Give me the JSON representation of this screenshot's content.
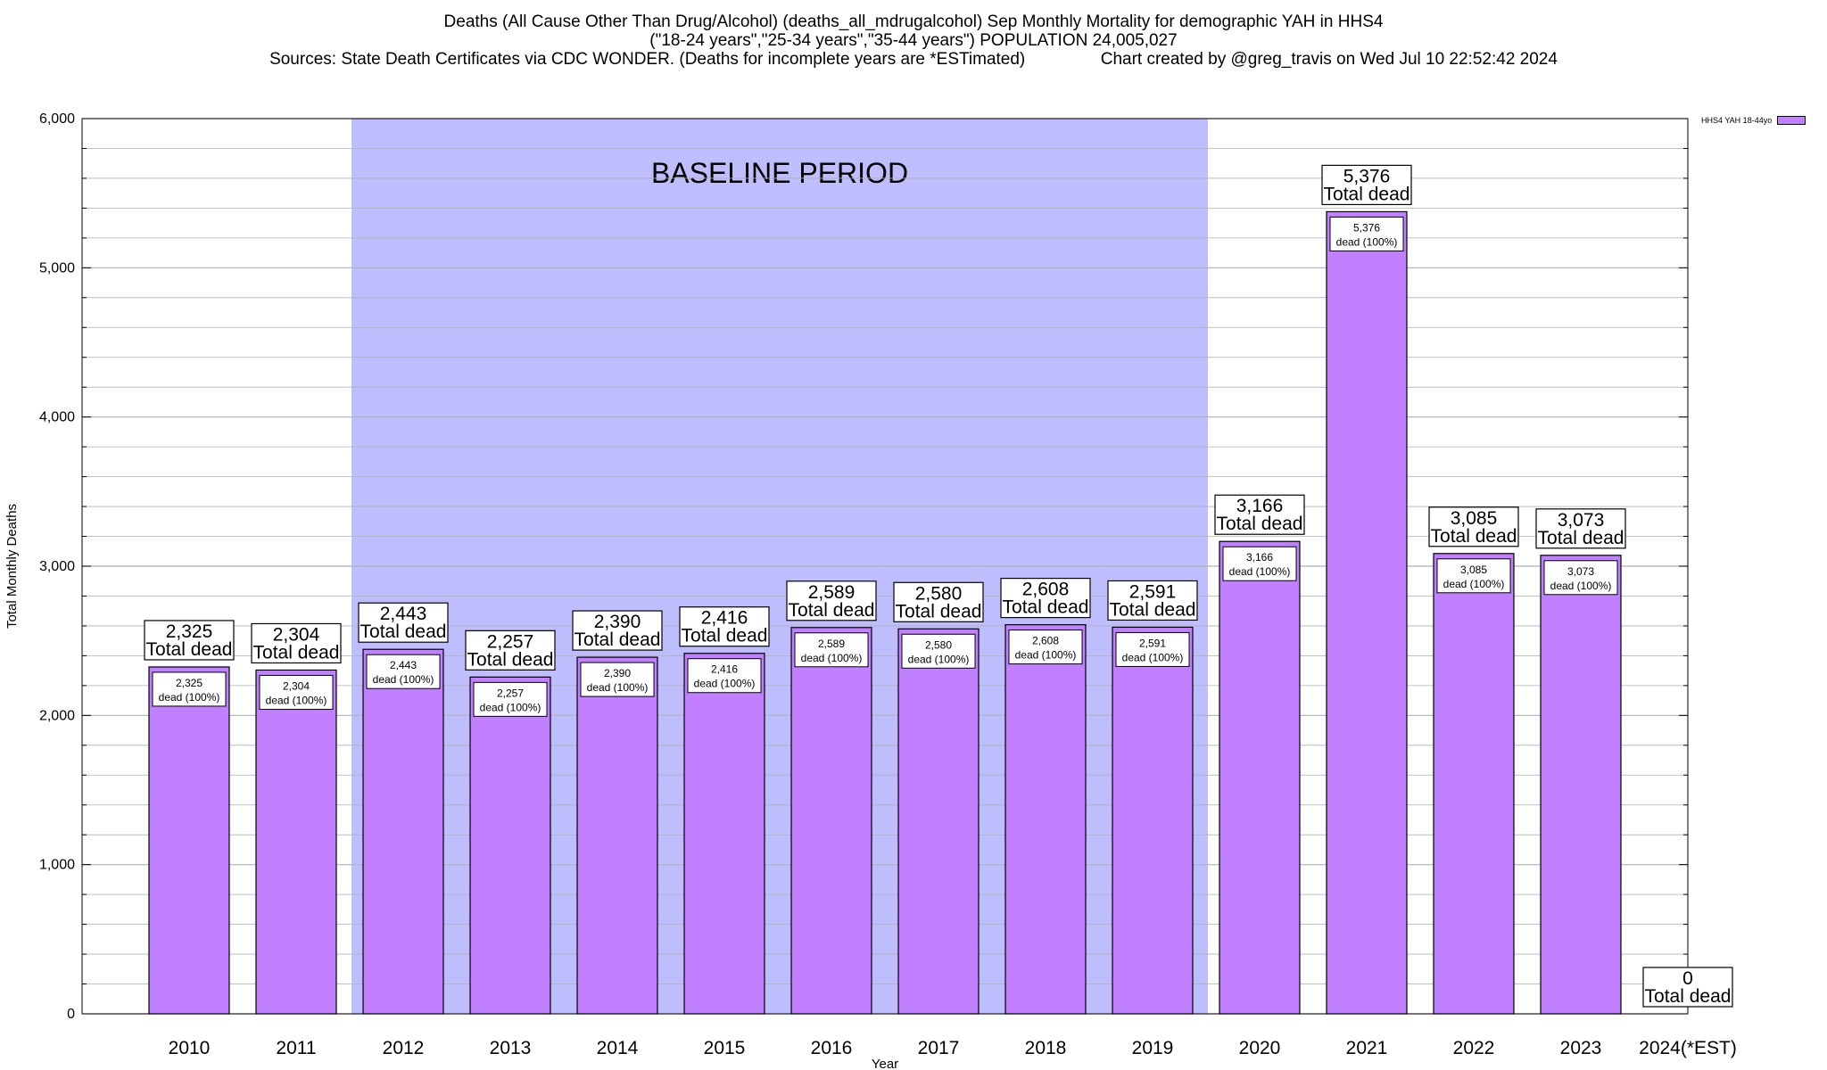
{
  "chart_data": {
    "type": "bar",
    "title": "Deaths (All Cause Other Than Drug/Alcohol) (deaths_all_mdrugalcohol) Sep Monthly Mortality for demographic YAH in HHS4",
    "subtitle": "(\"18-24 years\",\"25-34 years\",\"35-44 years\") POPULATION 24,005,027",
    "sources": "Sources: State Death Certificates via CDC WONDER. (Deaths for incomplete years are *ESTimated)",
    "credit": "Chart created by @greg_travis on Wed Jul 10 22:52:42 2024",
    "xlabel": "Year",
    "ylabel": "Total Monthly Deaths",
    "ylim": [
      0,
      6000
    ],
    "yticks": [
      0,
      1000,
      2000,
      3000,
      4000,
      5000,
      6000
    ],
    "ytick_labels": [
      "0",
      "1,000",
      "2,000",
      "3,000",
      "4,000",
      "5,000",
      "6,000"
    ],
    "grid": true,
    "legend_position": "top-right",
    "baseline_label": "BASELINE PERIOD",
    "baseline_range": [
      "2012",
      "2019"
    ],
    "categories": [
      "2010",
      "2011",
      "2012",
      "2013",
      "2014",
      "2015",
      "2016",
      "2017",
      "2018",
      "2019",
      "2020",
      "2021",
      "2022",
      "2023",
      "2024(*EST)"
    ],
    "series": [
      {
        "name": "HHS4 YAH 18-44yo",
        "values": [
          2325,
          2304,
          2443,
          2257,
          2390,
          2416,
          2589,
          2580,
          2608,
          2591,
          3166,
          5376,
          3085,
          3073,
          0
        ],
        "top_labels": [
          "2,325",
          "2,304",
          "2,443",
          "2,257",
          "2,390",
          "2,416",
          "2,589",
          "2,580",
          "2,608",
          "2,591",
          "3,166",
          "5,376",
          "3,085",
          "3,073",
          "0"
        ],
        "top_label_suffix": "Total dead",
        "inner_labels": [
          "2,325",
          "2,304",
          "2,443",
          "2,257",
          "2,390",
          "2,416",
          "2,589",
          "2,580",
          "2,608",
          "2,591",
          "3,166",
          "5,376",
          "3,085",
          "3,073",
          ""
        ],
        "inner_label_suffix": "dead (100%)"
      }
    ],
    "colors": {
      "bar": "#c080ff",
      "baseline": "#bebeff",
      "grid": "#b0b0b0"
    }
  }
}
